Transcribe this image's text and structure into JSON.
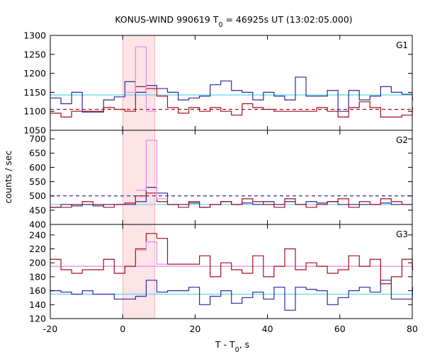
{
  "chart_data": {
    "type": "line",
    "title": "KONUS-WIND 990619 T",
    "title_sub": "0",
    "title_rest": " = 46925s UT (13:02:05.000)",
    "xlabel": "T - T",
    "xlabel_sub": "0",
    "xlabel_rest": ", s",
    "ylabel": "counts / sec",
    "xlim": [
      -20,
      80
    ],
    "xticks": [
      -20,
      0,
      20,
      40,
      60,
      80
    ],
    "shaded_interval": [
      0,
      8.9
    ],
    "shade_color": "#fde4e6",
    "bin_width": 2.944,
    "bin_start": -20,
    "colors": {
      "blue": "#2a2aa6",
      "red": "#a30f1e",
      "cyan": "#66d4e6",
      "pink": "#e68ae6",
      "navy_dash": "#1a1a8c",
      "red_dash": "#a30f1e"
    },
    "panels": [
      {
        "label": "G1",
        "ylim": [
          1050,
          1300
        ],
        "yticks": [
          1050,
          1100,
          1150,
          1200,
          1250,
          1300
        ],
        "series": [
          {
            "color": "blue",
            "values": [
              1135,
              1120,
              1150,
              1098,
              1098,
              1130,
              1138,
              1178,
              1150,
              1168,
              1160,
              1150,
              1130,
              1135,
              1140,
              1170,
              1180,
              1155,
              1150,
              1130,
              1150,
              1140,
              1130,
              1190,
              1140,
              1140,
              1155,
              1100,
              1155,
              1130,
              1140,
              1165,
              1150,
              1145,
              1130
            ]
          },
          {
            "color": "red",
            "values": [
              1095,
              1085,
              1100,
              1100,
              1100,
              1110,
              1105,
              1100,
              1165,
              1160,
              1140,
              1110,
              1095,
              1110,
              1100,
              1110,
              1100,
              1090,
              1120,
              1110,
              1105,
              1100,
              1100,
              1100,
              1100,
              1110,
              1100,
              1085,
              1110,
              1125,
              1110,
              1085,
              1085,
              1090,
              1110
            ]
          },
          {
            "color": "pink",
            "start_bin": 7,
            "values": [
              1150,
              1270,
              1100
            ]
          }
        ],
        "hlines": [
          {
            "value": 1143,
            "style": "solid",
            "color": "cyan"
          },
          {
            "value": 1105,
            "style": "dash",
            "color": "red_dash"
          }
        ]
      },
      {
        "label": "G2",
        "ylim": [
          400,
          730
        ],
        "yticks": [
          400,
          450,
          500,
          550,
          600,
          650,
          700
        ],
        "series": [
          {
            "color": "blue",
            "values": [
              460,
              470,
              465,
              470,
              465,
              470,
              470,
              470,
              480,
              530,
              510,
              470,
              470,
              475,
              460,
              470,
              480,
              470,
              475,
              470,
              480,
              470,
              480,
              470,
              480,
              475,
              480,
              470,
              470,
              470,
              470,
              475,
              470,
              470,
              470
            ]
          },
          {
            "color": "red",
            "values": [
              460,
              460,
              470,
              480,
              470,
              460,
              470,
              475,
              500,
              510,
              480,
              470,
              460,
              480,
              460,
              470,
              480,
              470,
              490,
              480,
              470,
              460,
              490,
              470,
              460,
              470,
              480,
              490,
              460,
              480,
              470,
              490,
              480,
              470,
              470
            ]
          },
          {
            "color": "pink",
            "start_bin": 8,
            "values": [
              520,
              695,
              490
            ]
          }
        ],
        "hlines": [
          {
            "value": 470,
            "style": "solid",
            "color": "cyan"
          },
          {
            "value": 500,
            "style": "dash",
            "color": "navy_dash"
          }
        ]
      },
      {
        "label": "G3",
        "ylim": [
          120,
          255
        ],
        "yticks": [
          120,
          140,
          160,
          180,
          200,
          220,
          240
        ],
        "series": [
          {
            "color": "blue",
            "values": [
              160,
              158,
              155,
              160,
              155,
              155,
              148,
              148,
              152,
              175,
              158,
              160,
              160,
              165,
              140,
              152,
              160,
              142,
              150,
              158,
              148,
              165,
              132,
              165,
              162,
              160,
              140,
              150,
              160,
              165,
              158,
              175,
              148,
              148,
              165
            ]
          },
          {
            "color": "red",
            "values": [
              205,
              190,
              185,
              190,
              190,
              205,
              185,
              195,
              220,
              242,
              235,
              198,
              198,
              198,
              210,
              180,
              200,
              190,
              185,
              210,
              180,
              195,
              220,
              190,
              200,
              195,
              185,
              190,
              210,
              195,
              205,
              170,
              180,
              205,
              190
            ]
          },
          {
            "color": "pink",
            "start_bin": 8,
            "values": [
              218,
              230,
              198
            ]
          }
        ],
        "hlines": [
          {
            "value": 155,
            "style": "solid",
            "color": "cyan"
          },
          {
            "value": 195,
            "style": "solid",
            "color": "pink"
          }
        ]
      }
    ]
  }
}
